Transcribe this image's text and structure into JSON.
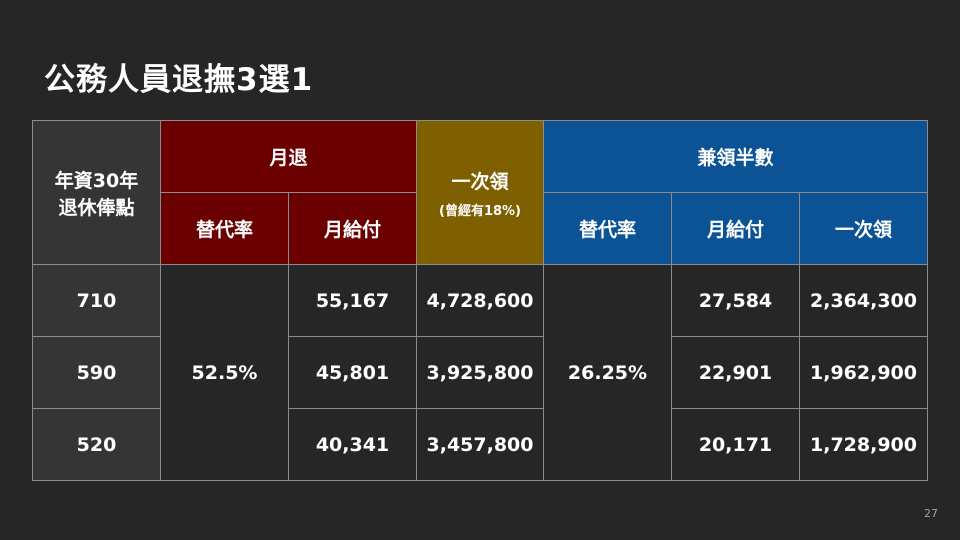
{
  "slide": {
    "title": "公務人員退撫3選1",
    "page_number": "27"
  },
  "table": {
    "corner_line1": "年資30年",
    "corner_line2": "退休俸點",
    "group_monthly": "月退",
    "group_lump": "一次領",
    "group_lump_note": "(曾經有18%)",
    "group_half": "兼領半數",
    "sub_rate": "替代率",
    "sub_pay": "月給付",
    "sub_lump": "一次領",
    "monthly_rate": "52.5%",
    "half_rate": "26.25%",
    "rows": [
      {
        "points": "710",
        "monthly_pay": "55,167",
        "lump_sum": "4,728,600",
        "half_pay": "27,584",
        "half_lump": "2,364,300"
      },
      {
        "points": "590",
        "monthly_pay": "45,801",
        "lump_sum": "3,925,800",
        "half_pay": "22,901",
        "half_lump": "1,962,900"
      },
      {
        "points": "520",
        "monthly_pay": "40,341",
        "lump_sum": "3,457,800",
        "half_pay": "20,171",
        "half_lump": "1,728,900"
      }
    ]
  },
  "colors": {
    "background": "#262626",
    "monthly_header": "#6b0000",
    "lump_header": "#7f6000",
    "half_header": "#0b5394",
    "row_header": "#353535"
  }
}
